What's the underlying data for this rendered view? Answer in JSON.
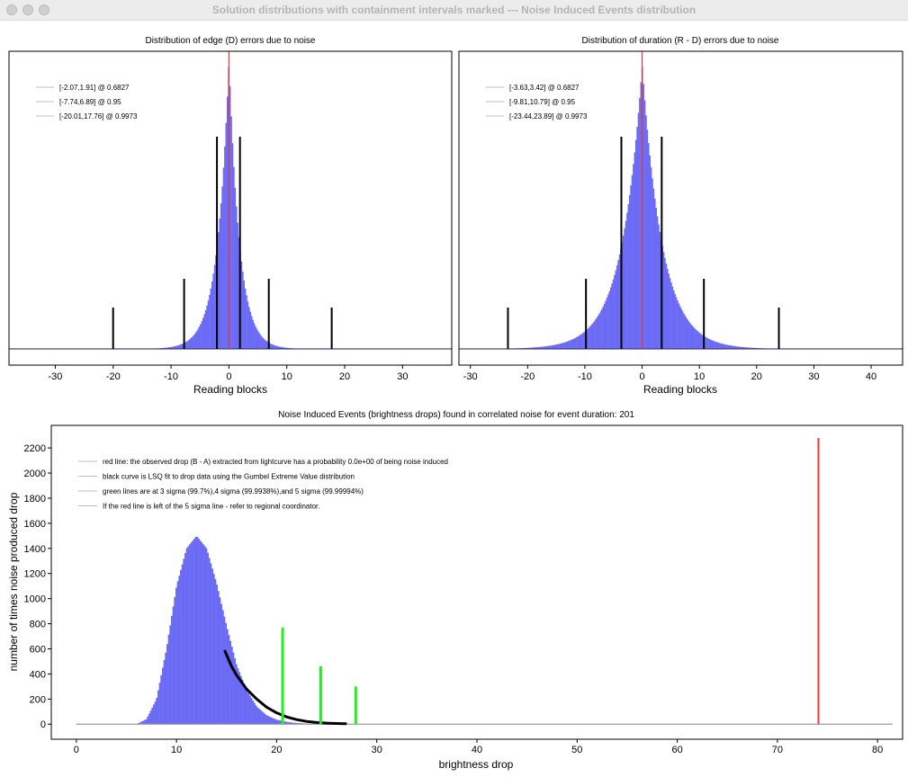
{
  "window": {
    "title": "Solution distributions with containment intervals marked --- Noise Induced Events distribution"
  },
  "colors": {
    "hist": "#6b6bf5",
    "observed": "#e8382f",
    "sigma": "#23ef23",
    "fit": "#000000",
    "frame": "#000000"
  },
  "chart_data": [
    {
      "type": "bar",
      "title": "Distribution of edge (D) errors due to noise",
      "xlabel": "Reading blocks",
      "ylabel": "",
      "xlim": [
        -38,
        38.5
      ],
      "xticks": [
        -30,
        -20,
        -10,
        0,
        10,
        20,
        30
      ],
      "legend_position": "top-left",
      "legend": [
        "[-2.07,1.91] @ 0.6827",
        "[-7.74,6.89] @ 0.95",
        "[-20.01,17.76] @ 0.9973"
      ],
      "distribution": {
        "center": 0,
        "scale_left": 2.0,
        "scale_right": 1.8,
        "peak": 0.97
      },
      "reference_line": 0,
      "intervals": [
        {
          "low": -2.07,
          "high": 1.91,
          "confidence": 0.6827
        },
        {
          "low": -7.74,
          "high": 6.89,
          "confidence": 0.95
        },
        {
          "low": -20.01,
          "high": 17.76,
          "confidence": 0.9973
        }
      ]
    },
    {
      "type": "bar",
      "title": "Distribution of duration (R - D) errors due to noise",
      "xlabel": "Reading blocks",
      "ylabel": "",
      "xlim": [
        -32,
        45.5
      ],
      "xticks": [
        -30,
        -20,
        -10,
        0,
        10,
        20,
        30,
        40
      ],
      "legend_position": "top-left",
      "legend": [
        "[-3.63,3.42] @ 0.6827",
        "[-9.81,10.79] @ 0.95",
        "[-23.44,23.89] @ 0.9973"
      ],
      "distribution": {
        "center": 0,
        "scale_left": 3.6,
        "scale_right": 3.5,
        "peak": 0.95
      },
      "reference_line": 0,
      "intervals": [
        {
          "low": -3.63,
          "high": 3.42,
          "confidence": 0.6827
        },
        {
          "low": -9.81,
          "high": 10.79,
          "confidence": 0.95
        },
        {
          "low": -23.44,
          "high": 23.89,
          "confidence": 0.9973
        }
      ]
    },
    {
      "type": "bar",
      "title": "Noise Induced Events (brightness drops) found in correlated noise for event duration: 201",
      "xlabel": "brightness drop",
      "ylabel": "number of times noise produced drop",
      "xlim": [
        -2.5,
        82.5
      ],
      "ylim": [
        -120,
        2380
      ],
      "xticks": [
        0,
        10,
        20,
        30,
        40,
        50,
        60,
        70,
        80
      ],
      "yticks": [
        0,
        200,
        400,
        600,
        800,
        1000,
        1200,
        1400,
        1600,
        1800,
        2000,
        2200
      ],
      "legend_position": "top-left",
      "legend": [
        "red line: the observed drop (B - A) extracted from lightcurve has a probability 0.0e+00 of being noise induced",
        "black curve is LSQ fit to drop data using the Gumbel Extreme Value distribution",
        "green lines are at 3 sigma (99.7%),4 sigma (99.9938%),and 5 sigma (99.99994%)",
        "If the red line is left of the 5 sigma line - refer to regional coordinator."
      ],
      "histogram": {
        "x": [
          6,
          7,
          8,
          9,
          10,
          11,
          12,
          13,
          14,
          15,
          16,
          17,
          18,
          19,
          20,
          21,
          22,
          23,
          24,
          25,
          26,
          27
        ],
        "counts": [
          0,
          40,
          200,
          600,
          1100,
          1400,
          1500,
          1400,
          1120,
          780,
          470,
          270,
          140,
          70,
          35,
          18,
          9,
          5,
          2,
          1,
          0,
          0
        ]
      },
      "baseline_range": [
        0,
        81.5
      ],
      "fit_curve": {
        "x": [
          14.8,
          15.5,
          16,
          17,
          18,
          19,
          20,
          21,
          22,
          23,
          24,
          25,
          26,
          27
        ],
        "y": [
          590,
          460,
          390,
          280,
          200,
          135,
          90,
          58,
          36,
          22,
          13,
          8,
          5,
          3
        ]
      },
      "sigma_lines": [
        {
          "x": 20.6,
          "height": 770
        },
        {
          "x": 24.4,
          "height": 460
        },
        {
          "x": 27.9,
          "height": 300
        }
      ],
      "observed_drop": {
        "x": 74.1,
        "height": 2280
      }
    }
  ]
}
